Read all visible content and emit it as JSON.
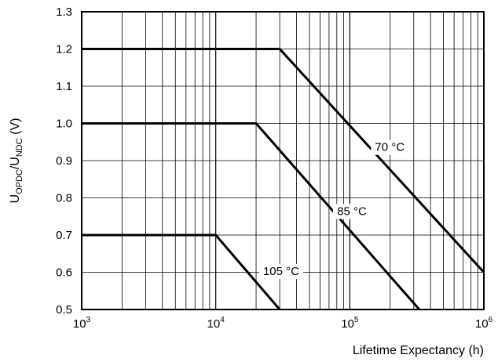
{
  "chart_data": {
    "type": "line",
    "xlabel": "Lifetime Expectancy (h)",
    "ylabel": {
      "main": "U",
      "sub1": "OPDC",
      "mid": "/U",
      "sub2": "NDC",
      "unit": " (V)"
    },
    "xscale": "log",
    "xlim": [
      1000,
      1000000
    ],
    "ylim": [
      0.5,
      1.3
    ],
    "grid": true,
    "x_ticks": [
      {
        "base": "10",
        "exp": "3"
      },
      {
        "base": "10",
        "exp": "4"
      },
      {
        "base": "10",
        "exp": "5"
      },
      {
        "base": "10",
        "exp": "6"
      }
    ],
    "y_ticks": [
      "0.5",
      "0.6",
      "0.7",
      "0.8",
      "0.9",
      "1.0",
      "1.1",
      "1.2",
      "1.3"
    ],
    "series": [
      {
        "name": "70 °C",
        "x": [
          1000,
          30000,
          1000000
        ],
        "y": [
          1.2,
          1.2,
          0.6
        ]
      },
      {
        "name": "85 °C",
        "x": [
          1000,
          20000,
          330000
        ],
        "y": [
          1.0,
          1.0,
          0.5
        ]
      },
      {
        "name": "105 °C",
        "x": [
          1000,
          10000,
          30000
        ],
        "y": [
          0.7,
          0.7,
          0.5
        ]
      }
    ]
  }
}
